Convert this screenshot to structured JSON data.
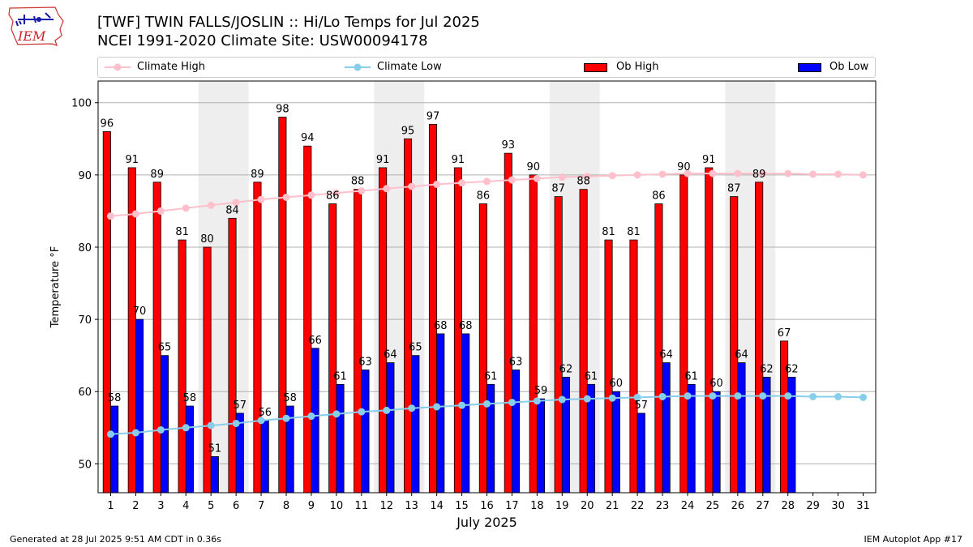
{
  "header": {
    "title_line1": "[TWF] TWIN FALLS/JOSLIN :: Hi/Lo Temps for Jul 2025",
    "title_line2": "NCEI 1991-2020 Climate Site: USW00094178",
    "logo_text": "IEM"
  },
  "legend": {
    "items": [
      {
        "label": "Climate High",
        "kind": "line",
        "color": "#ffc0cb"
      },
      {
        "label": "Climate Low",
        "kind": "line",
        "color": "#87ceeb"
      },
      {
        "label": "Ob High",
        "kind": "bar",
        "color": "#ff0000"
      },
      {
        "label": "Ob Low",
        "kind": "bar",
        "color": "#0000ff"
      }
    ]
  },
  "footer": {
    "generated": "Generated at 28 Jul 2025 9:51 AM CDT in 0.36s",
    "app": "IEM Autoplot App #17"
  },
  "chart_data": {
    "type": "bar",
    "xlabel": "July 2025",
    "ylabel": "Temperature °F",
    "ylim": [
      46,
      103
    ],
    "yticks": [
      50,
      60,
      70,
      80,
      90,
      100
    ],
    "grid": "horizontal",
    "legend_position": "top",
    "categories": [
      "1",
      "2",
      "3",
      "4",
      "5",
      "6",
      "7",
      "8",
      "9",
      "10",
      "11",
      "12",
      "13",
      "14",
      "15",
      "16",
      "17",
      "18",
      "19",
      "20",
      "21",
      "22",
      "23",
      "24",
      "25",
      "26",
      "27",
      "28",
      "29",
      "30",
      "31"
    ],
    "weekend_shading": [
      [
        5,
        6
      ],
      [
        12,
        13
      ],
      [
        19,
        20
      ],
      [
        26,
        27
      ]
    ],
    "series": [
      {
        "name": "Ob High",
        "kind": "bar",
        "color": "#ff0000",
        "values": [
          96,
          91,
          89,
          81,
          80,
          84,
          89,
          98,
          94,
          86,
          88,
          91,
          95,
          97,
          91,
          86,
          93,
          90,
          87,
          88,
          81,
          81,
          86,
          90,
          91,
          87,
          89,
          67,
          null,
          null,
          null
        ]
      },
      {
        "name": "Ob Low",
        "kind": "bar",
        "color": "#0000ff",
        "values": [
          58,
          70,
          65,
          58,
          51,
          57,
          56,
          58,
          66,
          61,
          63,
          64,
          65,
          68,
          68,
          61,
          63,
          59,
          62,
          61,
          60,
          57,
          64,
          61,
          60,
          64,
          62,
          62,
          null,
          null,
          null
        ]
      },
      {
        "name": "Climate High",
        "kind": "line",
        "color": "#ffc0cb",
        "values": [
          84.3,
          84.6,
          85.0,
          85.4,
          85.8,
          86.2,
          86.6,
          86.9,
          87.2,
          87.5,
          87.8,
          88.1,
          88.4,
          88.7,
          88.9,
          89.1,
          89.3,
          89.5,
          89.7,
          89.8,
          89.9,
          90.0,
          90.1,
          90.2,
          90.2,
          90.2,
          90.2,
          90.2,
          90.1,
          90.1,
          90.0
        ]
      },
      {
        "name": "Climate Low",
        "kind": "line",
        "color": "#87ceeb",
        "values": [
          54.1,
          54.3,
          54.7,
          55.0,
          55.3,
          55.6,
          56.0,
          56.3,
          56.6,
          56.9,
          57.2,
          57.4,
          57.7,
          57.9,
          58.1,
          58.3,
          58.5,
          58.7,
          58.9,
          59.0,
          59.1,
          59.2,
          59.3,
          59.4,
          59.4,
          59.4,
          59.4,
          59.4,
          59.3,
          59.3,
          59.2
        ]
      }
    ]
  }
}
